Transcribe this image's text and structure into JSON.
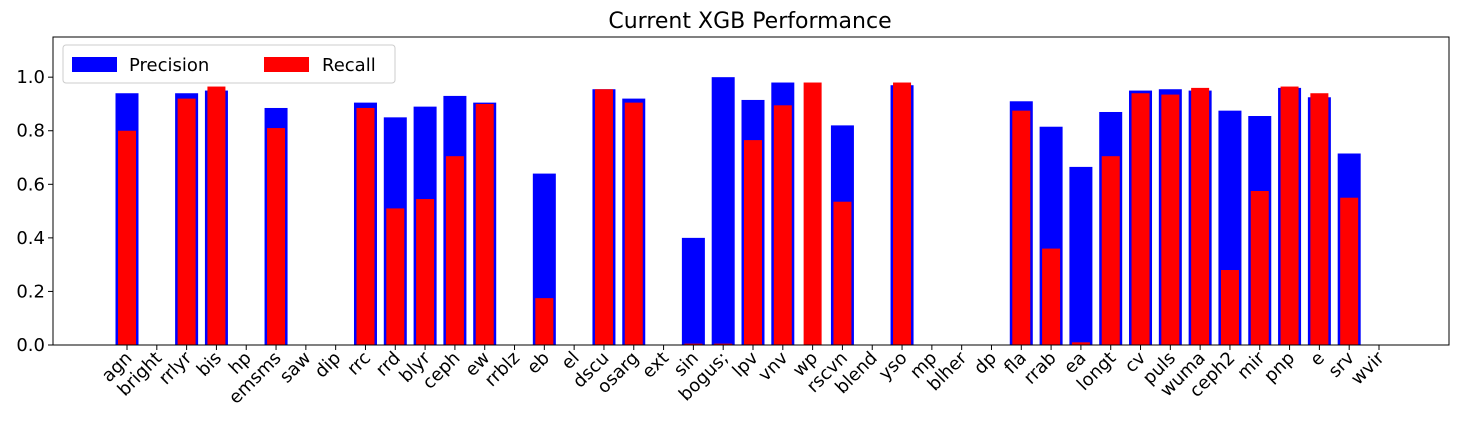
{
  "chart_data": {
    "type": "bar",
    "title": "Current XGB Performance",
    "xlabel": "",
    "ylabel": "",
    "ylim": [
      0,
      1.15
    ],
    "yticks": [
      0.0,
      0.2,
      0.4,
      0.6,
      0.8,
      1.0
    ],
    "ytick_labels": [
      "0.0",
      "0.2",
      "0.4",
      "0.6",
      "0.8",
      "1.0"
    ],
    "grid": false,
    "legend_position": "top-left",
    "categories": [
      "agn",
      "bright",
      "rrlyr",
      "bis",
      "hp",
      "emsms",
      "saw",
      "dip",
      "rrc",
      "rrd",
      "blyr",
      "ceph",
      "ew",
      "rrblz",
      "eb",
      "el",
      "dscu",
      "osarg",
      "ext",
      "sin",
      "bogus",
      "lpv",
      "vnv",
      "wp",
      "rscvn",
      "blend",
      "yso",
      "mp",
      "blher",
      "dp",
      "fla",
      "rrab",
      "ea",
      "longt",
      "cv",
      "puls",
      "wuma",
      "ceph2",
      "mir",
      "pnp",
      "e",
      "srv",
      "wvir"
    ],
    "category_display": [
      "agn",
      "bright",
      "rrlyr",
      "bis",
      "hp",
      "emsms",
      "saw",
      "dip",
      "rrc",
      "rrd",
      "blyr",
      "ceph",
      "ew",
      "rrblz",
      "eb",
      "el",
      "dscu",
      "osarg",
      "ext",
      "sin",
      "bogus;",
      "lpv",
      "vnv",
      "wp",
      "rscvn",
      "blend",
      "yso",
      "mp",
      "blher",
      "dp",
      "fla",
      "rrab",
      "ea",
      "longt",
      "cv",
      "puls",
      "wuma",
      "ceph2",
      "mir",
      "pnp",
      "e",
      "srv",
      "wvir"
    ],
    "series": [
      {
        "name": "Precision",
        "color": "#0000ff",
        "values": [
          0.94,
          0,
          0.94,
          0.95,
          0,
          0.885,
          0,
          0,
          0.905,
          0.85,
          0.89,
          0.93,
          0.905,
          0,
          0.64,
          0,
          0.955,
          0.92,
          0,
          0.4,
          1.0,
          0.915,
          0.98,
          0,
          0.82,
          0,
          0.97,
          0,
          0,
          0,
          0.91,
          0.815,
          0.665,
          0.87,
          0.95,
          0.955,
          0.95,
          0.875,
          0.855,
          0.96,
          0.925,
          0.715,
          0
        ]
      },
      {
        "name": "Recall",
        "color": "#ff0000",
        "values": [
          0.8,
          0,
          0.92,
          0.965,
          0,
          0.81,
          0,
          0,
          0.885,
          0.51,
          0.545,
          0.705,
          0.9,
          0,
          0.175,
          0,
          0.955,
          0.905,
          0,
          0.005,
          0.005,
          0.765,
          0.895,
          0.98,
          0.535,
          0,
          0.98,
          0,
          0,
          0,
          0.875,
          0.36,
          0.01,
          0.705,
          0.94,
          0.935,
          0.96,
          0.28,
          0.575,
          0.965,
          0.94,
          0.55,
          0
        ]
      }
    ]
  }
}
